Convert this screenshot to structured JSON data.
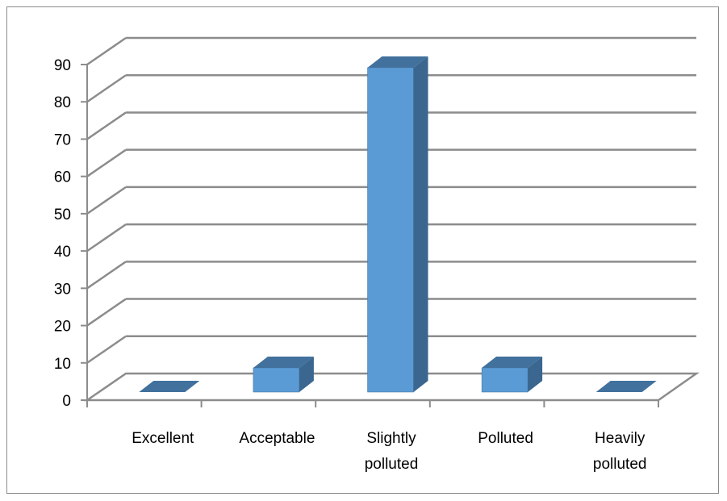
{
  "chart_data": {
    "type": "bar",
    "style": "3d-column",
    "categories": [
      "Excellent",
      "Acceptable",
      "Slightly polluted",
      "Polluted",
      "Heavily polluted"
    ],
    "category_label_lines": [
      [
        "Excellent"
      ],
      [
        "Acceptable"
      ],
      [
        "Slightly",
        "polluted"
      ],
      [
        "Polluted"
      ],
      [
        "Heavily",
        "polluted"
      ]
    ],
    "values": [
      0,
      6.5,
      87,
      6.5,
      0
    ],
    "ylim": [
      0,
      90
    ],
    "yticks": [
      0,
      10,
      20,
      30,
      40,
      50,
      60,
      70,
      80,
      90
    ],
    "title": "",
    "xlabel": "",
    "ylabel": "",
    "grid": true,
    "legend": "none",
    "colors": {
      "bar_front": "#5b9bd5",
      "bar_side": "#3a668f",
      "bar_top": "#41719c",
      "gridline": "#8c8c8c",
      "axis": "#8c8c8c"
    }
  }
}
